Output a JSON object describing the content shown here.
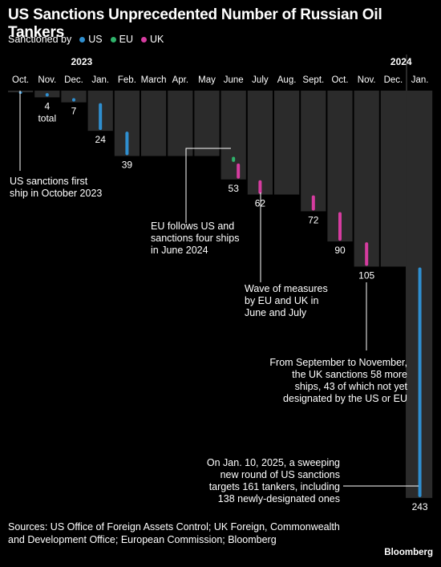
{
  "title": "US Sanctions Unprecedented Number of Russian Oil Tankers",
  "legend": {
    "label": "Sanctioned by",
    "items": [
      {
        "name": "US",
        "color": "#2f8fd0"
      },
      {
        "name": "EU",
        "color": "#2fb36b"
      },
      {
        "name": "UK",
        "color": "#d63ca0"
      }
    ]
  },
  "chart_data": {
    "type": "bar",
    "description_mode": "cumulative waterfall by month",
    "years": [
      "2023",
      "2024"
    ],
    "categories": [
      "Oct.",
      "Nov.",
      "Dec.",
      "Jan.",
      "Feb.",
      "March",
      "Apr.",
      "May",
      "June",
      "July",
      "Aug.",
      "Sept.",
      "Oct.",
      "Nov.",
      "Dec.",
      "Jan."
    ],
    "cumulative": [
      1,
      4,
      7,
      24,
      39,
      39,
      39,
      39,
      53,
      62,
      62,
      72,
      90,
      105,
      105,
      243
    ],
    "value_labels": [
      "",
      "4",
      "7",
      "24",
      "39",
      "",
      "",
      "",
      "53",
      "62",
      "",
      "72",
      "90",
      "105",
      "",
      "243"
    ],
    "total_label": "total",
    "series": [
      {
        "name": "US",
        "values": [
          1,
          3,
          3,
          17,
          15,
          0,
          0,
          0,
          0,
          0,
          0,
          0,
          0,
          0,
          0,
          138
        ]
      },
      {
        "name": "EU",
        "values": [
          0,
          0,
          0,
          0,
          0,
          0,
          0,
          0,
          4,
          0,
          0,
          0,
          0,
          0,
          0,
          0
        ]
      },
      {
        "name": "UK",
        "values": [
          0,
          0,
          0,
          0,
          0,
          0,
          0,
          0,
          10,
          9,
          0,
          10,
          18,
          15,
          0,
          0
        ]
      }
    ],
    "annotations": [
      {
        "lines": [
          "US sanctions first",
          "ship in October 2023"
        ]
      },
      {
        "lines": [
          "EU follows US and",
          "sanctions four ships",
          "in June 2024"
        ]
      },
      {
        "lines": [
          "Wave of measures",
          "by EU and UK in",
          "June and July"
        ]
      },
      {
        "lines": [
          "From September to November,",
          "the UK sanctions 58 more",
          "ships, 43 of which not yet",
          "designated by the US or EU"
        ]
      },
      {
        "lines": [
          "On Jan. 10, 2025, a sweeping",
          "new round of US sanctions",
          "targets 161 tankers, including",
          "138 newly-designated ones"
        ]
      }
    ]
  },
  "sources": "Sources: US Office of Foreign Assets Control; UK Foreign, Commonwealth and Development Office; European Commission; Bloomberg",
  "brand": "Bloomberg"
}
